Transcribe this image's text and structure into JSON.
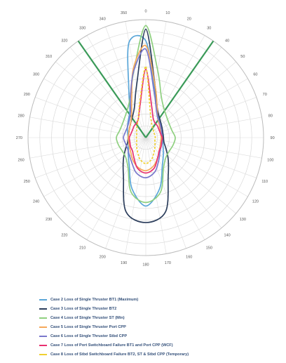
{
  "chart_data": {
    "type": "polar",
    "angle_unit": "degrees",
    "angle_ticks": [
      "0",
      "10",
      "20",
      "30",
      "40",
      "50",
      "60",
      "70",
      "80",
      "90",
      "100",
      "110",
      "120",
      "130",
      "140",
      "150",
      "160",
      "170",
      "180",
      "190",
      "200",
      "210",
      "220",
      "230",
      "240",
      "250",
      "260",
      "270",
      "280",
      "290",
      "300",
      "310",
      "320",
      "330",
      "340",
      "350"
    ],
    "r_max": 100,
    "radial_rings": 10,
    "grid": true,
    "legend_position": "bottom",
    "envelope_angles": [
      0,
      10,
      20,
      30,
      45,
      60,
      75,
      90,
      105,
      120,
      135,
      150,
      165,
      180,
      195,
      210,
      225,
      240,
      255,
      270,
      285,
      300,
      315,
      330,
      340,
      350
    ],
    "series": [
      {
        "name": "Case 2 Loss of Single Thruster BT1 (Maximum)",
        "color": "#5aa6d8",
        "r": [
          82,
          42,
          27,
          21,
          18,
          16,
          15,
          15,
          15,
          17,
          21,
          28,
          45,
          58,
          45,
          28,
          21,
          17,
          15,
          15,
          16,
          18,
          21,
          27,
          42,
          82
        ]
      },
      {
        "name": "Case 3 Loss of Single Thruster BT2",
        "color": "#2c3e5c",
        "r": [
          92,
          45,
          28,
          22,
          18,
          16,
          15,
          15,
          16,
          20,
          27,
          38,
          65,
          72,
          65,
          38,
          27,
          20,
          16,
          15,
          15,
          16,
          18,
          22,
          28,
          45
        ]
      },
      {
        "name": "Case 4 Loss of Single Thruster ST (Min)",
        "color": "#8fd080",
        "r": [
          95,
          58,
          38,
          30,
          25,
          23,
          23,
          25,
          24,
          23,
          24,
          30,
          48,
          55,
          48,
          30,
          24,
          23,
          24,
          25,
          23,
          23,
          25,
          30,
          38,
          58
        ]
      },
      {
        "name": "Case 5 Loss of Single Thruster Port CPP",
        "color": "#f5a85a",
        "r": [
          78,
          45,
          28,
          20,
          16,
          14,
          13,
          13,
          13,
          14,
          16,
          20,
          25,
          28,
          26,
          22,
          18,
          16,
          15,
          15,
          15,
          16,
          18,
          24,
          35,
          60
        ]
      },
      {
        "name": "Case 6 Loss of Single Thruster Stbd CPP",
        "color": "#7a78cc",
        "r": [
          75,
          40,
          26,
          20,
          17,
          15,
          14,
          14,
          14,
          15,
          17,
          22,
          30,
          34,
          31,
          24,
          20,
          18,
          18,
          19,
          18,
          18,
          20,
          26,
          38,
          58
        ]
      },
      {
        "name": "Case 7 Loss of Port Switchboard Failure BT1 and Port CPP (WCF)",
        "color": "#e83070",
        "r": [
          58,
          28,
          18,
          15,
          14,
          13,
          13,
          14,
          14,
          15,
          16,
          20,
          27,
          30,
          27,
          20,
          16,
          15,
          14,
          14,
          13,
          13,
          14,
          15,
          18,
          28
        ]
      },
      {
        "name": "Case 8 Loss of Stbd Switchboard Failure BT2, ST & Stbd CPP (Temporary)",
        "color": "#f0d030",
        "dashed": true,
        "r": [
          60,
          22,
          14,
          11,
          9,
          8,
          8,
          8,
          8,
          9,
          11,
          14,
          19,
          22,
          19,
          14,
          11,
          9,
          8,
          8,
          8,
          9,
          11,
          14,
          18,
          30
        ]
      }
    ],
    "reference_lines": [
      {
        "angle": 325,
        "color": "#3a9a58"
      },
      {
        "angle": 35,
        "color": "#3a9a58"
      }
    ]
  }
}
